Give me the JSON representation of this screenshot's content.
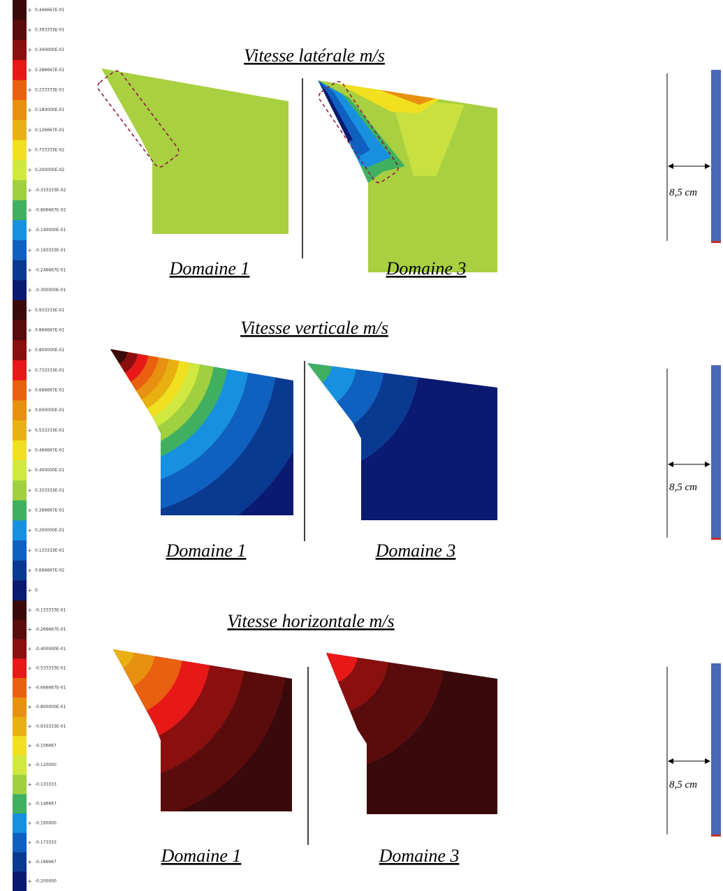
{
  "panels": [
    {
      "title": "Vitesse latérale m/s",
      "legend_labels": [
        "0.446667E-01",
        "0.393333E-01",
        "0.340000E-01",
        "0.286667E-01",
        "0.233333E-01",
        "0.180000E-01",
        "0.126667E-01",
        "0.733333E-02",
        "0.200000E-02",
        "-0.333333E-02",
        "-0.866667E-02",
        "-0.140000E-01",
        "-0.193333E-01",
        "-0.246667E-01",
        "-0.300000E-01"
      ],
      "domains": [
        "Domaine 1",
        "Domaine 3"
      ],
      "dimension": "8,5 cm"
    },
    {
      "title": "Vitesse verticale m/s",
      "legend_labels": [
        "0.933333E-01",
        "0.866667E-01",
        "0.800000E-01",
        "0.733333E-01",
        "0.666667E-01",
        "0.600000E-01",
        "0.533333E-01",
        "0.466667E-01",
        "0.400000E-01",
        "0.333333E-01",
        "0.266667E-01",
        "0.200000E-01",
        "0.133333E-01",
        "0.666667E-02",
        "0."
      ],
      "domains": [
        "Domaine 1",
        "Domaine 3"
      ],
      "dimension": "8,5 cm"
    },
    {
      "title": "Vitesse horizontale m/s",
      "legend_labels": [
        "-0.133333E-01",
        "-0.266667E-01",
        "-0.400000E-01",
        "-0.533333E-01",
        "-0.666667E-01",
        "-0.800000E-01",
        "-0.933333E-01",
        "-0.106667",
        "-0.120000",
        "-0.133333",
        "-0.146667",
        "-0.160000",
        "-0.173333",
        "-0.186667",
        "-0.200000"
      ],
      "domains": [
        "Domaine 1",
        "Domaine 3"
      ],
      "dimension": "8,5 cm"
    }
  ]
}
